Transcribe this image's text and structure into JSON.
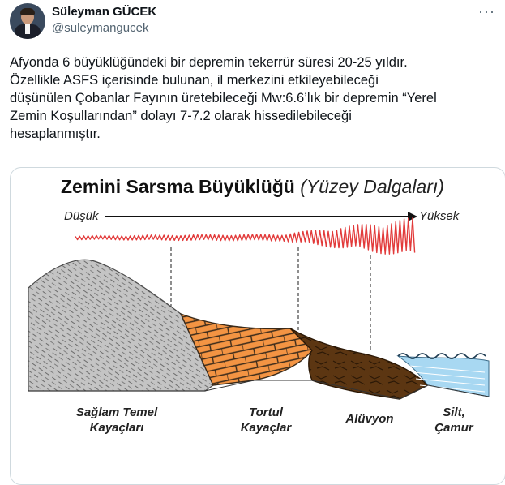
{
  "tweet": {
    "author_name": "Süleyman GÜCEK",
    "author_handle": "@suleymangucek",
    "more_icon": "more-horizontal-icon",
    "body_lines": [
      "Afyonda 6 büyüklüğündeki bir depremin tekerrür süresi 20-25 yıldır.",
      "Özellikle ASFS içerisinde bulunan, il merkezini etkileyebileceği",
      "düşünülen Çobanlar Fayının üretebileceği Mw:6.6’lık bir depremin “Yerel",
      "Zemin Koşullarından” dolayı 7-7.2 olarak hissedilebileceği",
      "hesaplanmıştır."
    ]
  },
  "infographic": {
    "title": "Zemini Sarsma Büyüklüğü",
    "subtitle": "(Yüzey Dalgaları)",
    "low_label": "Düşük",
    "high_label": "Yüksek",
    "bottom_labels": {
      "bedrock": [
        "Sağlam Temel",
        "Kayaçları"
      ],
      "sedimentary": [
        "Tortul",
        "Kayaçlar"
      ],
      "alluvium": [
        "Alüvyon"
      ],
      "silt": [
        "Silt,",
        "Çamur"
      ]
    },
    "colors": {
      "wave": "#e23a3a",
      "bedrock": "#bdbdbd",
      "sedimentary": "#f5913b",
      "alluvium": "#5a3410",
      "silt": "#9fd3f0"
    }
  }
}
